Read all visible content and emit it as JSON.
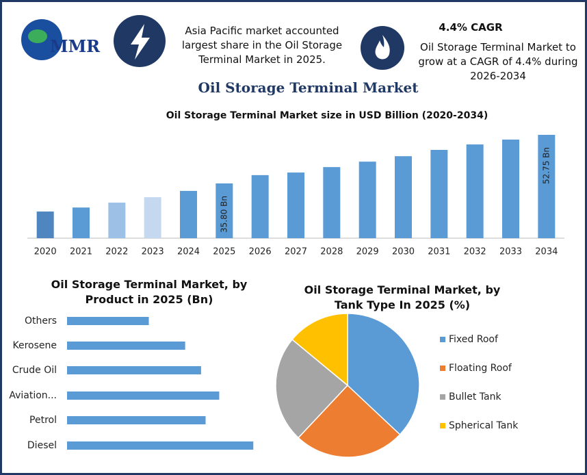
{
  "header": {
    "logo": "MMR",
    "note": "Asia Pacific market accounted largest share in the Oil Storage Terminal Market in 2025.",
    "cagr_title": "4.4% CAGR",
    "cagr_text": "Oil Storage Terminal Market to grow at a CAGR of 4.4% during 2026-2034",
    "title": "Oil Storage Terminal Market"
  },
  "chart_data": [
    {
      "type": "bar",
      "title": "Oil Storage Terminal Market size in USD Billion (2020-2034)",
      "categories": [
        "2020",
        "2021",
        "2022",
        "2023",
        "2024",
        "2025",
        "2026",
        "2027",
        "2028",
        "2029",
        "2030",
        "2031",
        "2032",
        "2033",
        "2034"
      ],
      "values": [
        26.0,
        27.4,
        29.1,
        31.0,
        33.2,
        35.8,
        38.7,
        39.6,
        41.5,
        43.4,
        45.3,
        47.5,
        49.4,
        51.1,
        52.75
      ],
      "value_labels": [
        null,
        null,
        null,
        null,
        null,
        "35.80 Bn",
        null,
        null,
        null,
        null,
        null,
        null,
        null,
        null,
        "52.75 Bn"
      ],
      "colors": [
        "#4f86c0",
        "#5b9bd5",
        "#9dc0e6",
        "#c4d8ef",
        "#5b9bd5",
        "#5b9bd5",
        "#5b9bd5",
        "#5b9bd5",
        "#5b9bd5",
        "#5b9bd5",
        "#5b9bd5",
        "#5b9bd5",
        "#5b9bd5",
        "#5b9bd5",
        "#5b9bd5"
      ],
      "ylim": [
        16.7,
        54.9
      ]
    },
    {
      "type": "barh",
      "title": "Oil Storage Terminal Market, by Product in 2025 (Bn)",
      "categories": [
        "Others",
        "Kerosene",
        "Crude Oil",
        "Aviation...",
        "Petrol",
        "Diesel"
      ],
      "values": [
        3.6,
        5.2,
        5.9,
        6.7,
        6.1,
        8.2
      ],
      "color": "#5b9bd5",
      "xlim": [
        0,
        10
      ]
    },
    {
      "type": "pie",
      "title": "Oil Storage Terminal Market, by Tank Type In 2025 (%)",
      "categories": [
        "Fixed Roof",
        "Floating Roof",
        "Bullet Tank",
        "Spherical Tank"
      ],
      "values": [
        37,
        25,
        24,
        14
      ],
      "colors": [
        "#5b9bd5",
        "#ed7d31",
        "#a5a5a5",
        "#ffc000"
      ],
      "legend": "right"
    }
  ]
}
